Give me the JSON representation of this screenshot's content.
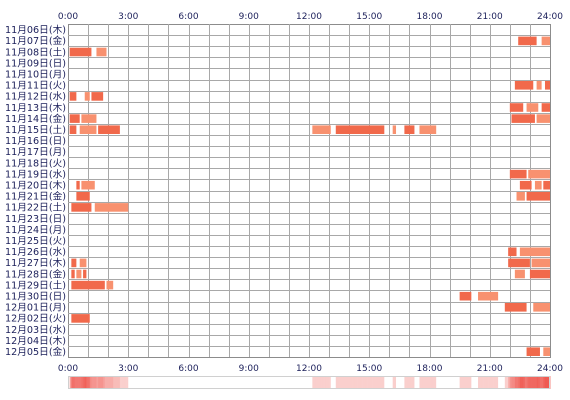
{
  "chart_data": {
    "type": "bar",
    "orientation": "horizontal-range",
    "x_tick_labels": [
      "0:00",
      "3:00",
      "6:00",
      "9:00",
      "12:00",
      "15:00",
      "18:00",
      "21:00",
      "24:00"
    ],
    "xlim": [
      "0:00",
      "24:00"
    ],
    "grid": true,
    "summary_strip": true,
    "rows": [
      {
        "label": "11月06日(木)",
        "intervals": []
      },
      {
        "label": "11月07日(金)",
        "intervals": [
          [
            "22:25",
            "23:20"
          ],
          [
            "23:35",
            "24:00"
          ]
        ]
      },
      {
        "label": "11月08日(土)",
        "intervals": [
          [
            "0:05",
            "1:10"
          ],
          [
            "1:25",
            "1:55"
          ]
        ]
      },
      {
        "label": "11月09日(日)",
        "intervals": []
      },
      {
        "label": "11月10日(月)",
        "intervals": []
      },
      {
        "label": "11月11日(火)",
        "intervals": [
          [
            "22:15",
            "23:10"
          ],
          [
            "23:20",
            "23:35"
          ],
          [
            "23:45",
            "24:00"
          ]
        ]
      },
      {
        "label": "11月12日(水)",
        "intervals": [
          [
            "0:05",
            "0:25"
          ],
          [
            "0:50",
            "1:05"
          ],
          [
            "1:10",
            "1:45"
          ]
        ]
      },
      {
        "label": "11月13日(木)",
        "intervals": [
          [
            "22:00",
            "22:40"
          ],
          [
            "22:50",
            "23:25"
          ],
          [
            "23:35",
            "24:00"
          ]
        ]
      },
      {
        "label": "11月14日(金)",
        "intervals": [
          [
            "0:05",
            "0:35"
          ],
          [
            "0:40",
            "1:25"
          ],
          [
            "22:05",
            "23:15"
          ],
          [
            "23:20",
            "24:00"
          ]
        ]
      },
      {
        "label": "11月15日(土)",
        "intervals": [
          [
            "0:05",
            "0:25"
          ],
          [
            "0:35",
            "1:25"
          ],
          [
            "1:30",
            "2:35"
          ],
          [
            "12:10",
            "13:05"
          ],
          [
            "13:20",
            "15:45"
          ],
          [
            "16:10",
            "16:20"
          ],
          [
            "16:45",
            "17:15"
          ],
          [
            "17:30",
            "18:20"
          ]
        ]
      },
      {
        "label": "11月16日(日)",
        "intervals": []
      },
      {
        "label": "11月17日(月)",
        "intervals": []
      },
      {
        "label": "11月18日(火)",
        "intervals": []
      },
      {
        "label": "11月19日(水)",
        "intervals": [
          [
            "22:00",
            "22:50"
          ],
          [
            "22:55",
            "24:00"
          ]
        ]
      },
      {
        "label": "11月20日(木)",
        "intervals": [
          [
            "0:25",
            "0:35"
          ],
          [
            "0:40",
            "1:20"
          ],
          [
            "22:30",
            "23:05"
          ],
          [
            "23:15",
            "23:35"
          ],
          [
            "23:40",
            "24:00"
          ]
        ]
      },
      {
        "label": "11月21日(金)",
        "intervals": [
          [
            "0:25",
            "1:05"
          ],
          [
            "22:20",
            "22:45"
          ],
          [
            "22:50",
            "24:00"
          ]
        ]
      },
      {
        "label": "11月22日(土)",
        "intervals": [
          [
            "0:10",
            "1:10"
          ],
          [
            "1:20",
            "3:00"
          ]
        ]
      },
      {
        "label": "11月23日(日)",
        "intervals": []
      },
      {
        "label": "11月24日(月)",
        "intervals": []
      },
      {
        "label": "11月25日(火)",
        "intervals": []
      },
      {
        "label": "11月26日(水)",
        "intervals": [
          [
            "21:55",
            "22:20"
          ],
          [
            "22:30",
            "24:00"
          ]
        ]
      },
      {
        "label": "11月27日(木)",
        "intervals": [
          [
            "0:10",
            "0:25"
          ],
          [
            "0:35",
            "0:55"
          ],
          [
            "21:55",
            "23:00"
          ],
          [
            "23:05",
            "24:00"
          ]
        ]
      },
      {
        "label": "11月28日(金)",
        "intervals": [
          [
            "0:10",
            "0:20"
          ],
          [
            "0:25",
            "0:40"
          ],
          [
            "0:45",
            "0:55"
          ],
          [
            "22:15",
            "22:45"
          ],
          [
            "23:00",
            "24:00"
          ]
        ]
      },
      {
        "label": "11月29日(土)",
        "intervals": [
          [
            "0:10",
            "1:50"
          ],
          [
            "1:55",
            "2:15"
          ]
        ]
      },
      {
        "label": "11月30日(日)",
        "intervals": [
          [
            "19:30",
            "20:05"
          ],
          [
            "20:25",
            "21:25"
          ]
        ]
      },
      {
        "label": "12月01日(月)",
        "intervals": [
          [
            "21:45",
            "22:50"
          ],
          [
            "23:10",
            "24:00"
          ]
        ]
      },
      {
        "label": "12月02日(火)",
        "intervals": [
          [
            "0:10",
            "1:05"
          ]
        ]
      },
      {
        "label": "12月03日(水)",
        "intervals": []
      },
      {
        "label": "12月04日(木)",
        "intervals": []
      },
      {
        "label": "12月05日(金)",
        "intervals": [
          [
            "22:50",
            "23:30"
          ],
          [
            "23:40",
            "24:00"
          ]
        ]
      }
    ]
  },
  "colors": {
    "bar": "#f1694b",
    "bar_alt": "#f8916f",
    "text": "#1b1f5a",
    "grid": "#a8a8a8",
    "border": "#8c8c8c",
    "strip_low": "#ffffff",
    "strip_high": "#ef5a52"
  }
}
